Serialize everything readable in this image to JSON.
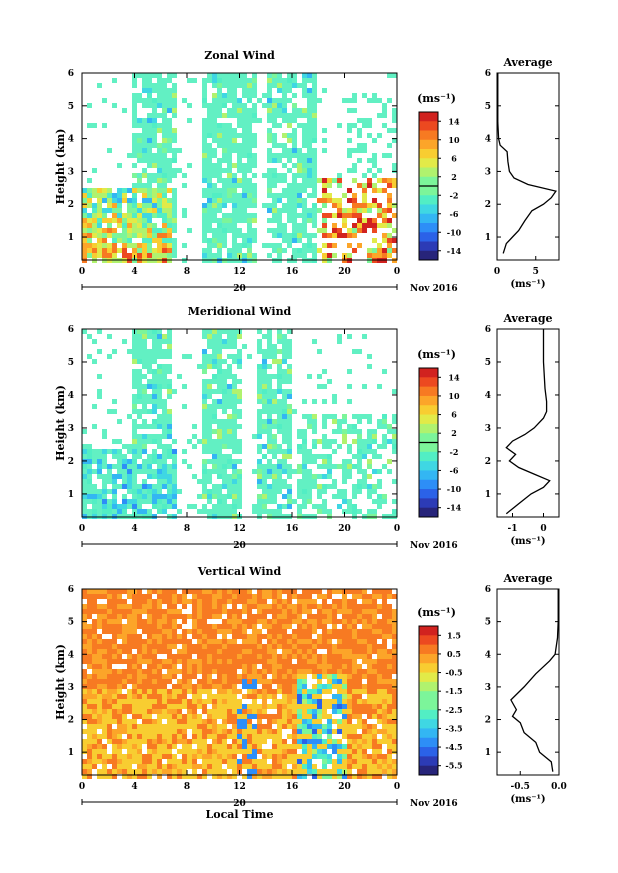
{
  "chart_data": [
    {
      "type": "heatmap",
      "title": "Zonal Wind",
      "ylabel": "Height (km)",
      "yticks": [
        "1",
        "2",
        "3",
        "4",
        "5",
        "6"
      ],
      "xticks": [
        "0",
        "4",
        "8",
        "12",
        "16",
        "20",
        "0"
      ],
      "date_label": "20",
      "month_label": "Nov 2016",
      "ylim": [
        0.3,
        6
      ],
      "xlim": [
        0,
        24
      ],
      "colorbar": {
        "unit": "(ms⁻¹)",
        "tick_labels": [
          "14",
          "10",
          "6",
          "2",
          "-2",
          "-6",
          "-10",
          "-14"
        ],
        "range": [
          -16,
          16
        ]
      },
      "profile": {
        "title": "Average",
        "xlabel": "(ms⁻¹)",
        "xticks": [
          "0",
          "5"
        ],
        "xlim": [
          0,
          8
        ],
        "yticks": [
          "1",
          "2",
          "3",
          "4",
          "5",
          "6"
        ],
        "height_km": [
          0.5,
          0.8,
          1.0,
          1.2,
          1.5,
          1.8,
          2.0,
          2.2,
          2.4,
          2.6,
          2.8,
          3.0,
          3.3,
          3.6,
          3.8,
          4.0,
          4.5,
          5.0,
          5.5,
          6.0
        ],
        "value": [
          0.8,
          1.2,
          2.0,
          2.8,
          3.6,
          4.5,
          6.0,
          7.0,
          7.6,
          4.0,
          2.2,
          1.6,
          1.4,
          1.3,
          0.4,
          0.2,
          0.1,
          0.1,
          0.1,
          0.1
        ]
      }
    },
    {
      "type": "heatmap",
      "title": "Meridional Wind",
      "ylabel": "Height (km)",
      "yticks": [
        "1",
        "2",
        "3",
        "4",
        "5",
        "6"
      ],
      "xticks": [
        "0",
        "4",
        "8",
        "12",
        "16",
        "20",
        "0"
      ],
      "date_label": "20",
      "month_label": "Nov 2016",
      "ylim": [
        0.3,
        6
      ],
      "xlim": [
        0,
        24
      ],
      "colorbar": {
        "unit": "(ms⁻¹)",
        "tick_labels": [
          "14",
          "10",
          "6",
          "2",
          "-2",
          "-6",
          "-10",
          "-14"
        ],
        "range": [
          -16,
          16
        ]
      },
      "profile": {
        "title": "Average",
        "xlabel": "(ms⁻¹)",
        "xticks": [
          "-1",
          "0"
        ],
        "xlim": [
          -1.5,
          0.5
        ],
        "yticks": [
          "1",
          "2",
          "3",
          "4",
          "5",
          "6"
        ],
        "height_km": [
          0.4,
          0.7,
          1.0,
          1.2,
          1.4,
          1.6,
          1.8,
          2.0,
          2.2,
          2.4,
          2.6,
          2.8,
          3.0,
          3.3,
          3.5,
          3.8,
          4.2,
          5.0,
          6.0
        ],
        "value": [
          -1.2,
          -0.8,
          -0.4,
          0.0,
          0.2,
          -0.3,
          -0.8,
          -1.1,
          -0.9,
          -1.2,
          -1.0,
          -0.6,
          -0.3,
          0.0,
          0.1,
          0.1,
          0.05,
          0.0,
          0.0
        ]
      }
    },
    {
      "type": "heatmap",
      "title": "Vertical Wind",
      "ylabel": "Height (km)",
      "xlabel": "Local Time",
      "yticks": [
        "1",
        "2",
        "3",
        "4",
        "5",
        "6"
      ],
      "xticks": [
        "0",
        "4",
        "8",
        "12",
        "16",
        "20",
        "0"
      ],
      "date_label": "20",
      "month_label": "Nov 2016",
      "ylim": [
        0.3,
        6
      ],
      "xlim": [
        0,
        24
      ],
      "colorbar": {
        "unit": "(ms⁻¹)",
        "tick_labels": [
          "1.5",
          "0.5",
          "-0.5",
          "-1.5",
          "-2.5",
          "-3.5",
          "-4.5",
          "-5.5"
        ],
        "range": [
          -6,
          2
        ]
      },
      "profile": {
        "title": "Average",
        "xlabel": "(ms⁻¹)",
        "xticks": [
          "-0.5",
          "0.0"
        ],
        "xlim": [
          -0.8,
          0.0
        ],
        "yticks": [
          "1",
          "2",
          "3",
          "4",
          "5",
          "6"
        ],
        "height_km": [
          0.4,
          0.7,
          1.0,
          1.3,
          1.6,
          1.9,
          2.1,
          2.3,
          2.6,
          3.0,
          3.4,
          3.8,
          4.0,
          4.5,
          5.0,
          6.0
        ],
        "value": [
          -0.08,
          -0.1,
          -0.25,
          -0.3,
          -0.45,
          -0.5,
          -0.6,
          -0.55,
          -0.62,
          -0.45,
          -0.3,
          -0.12,
          -0.05,
          -0.02,
          -0.01,
          -0.01
        ]
      }
    }
  ]
}
